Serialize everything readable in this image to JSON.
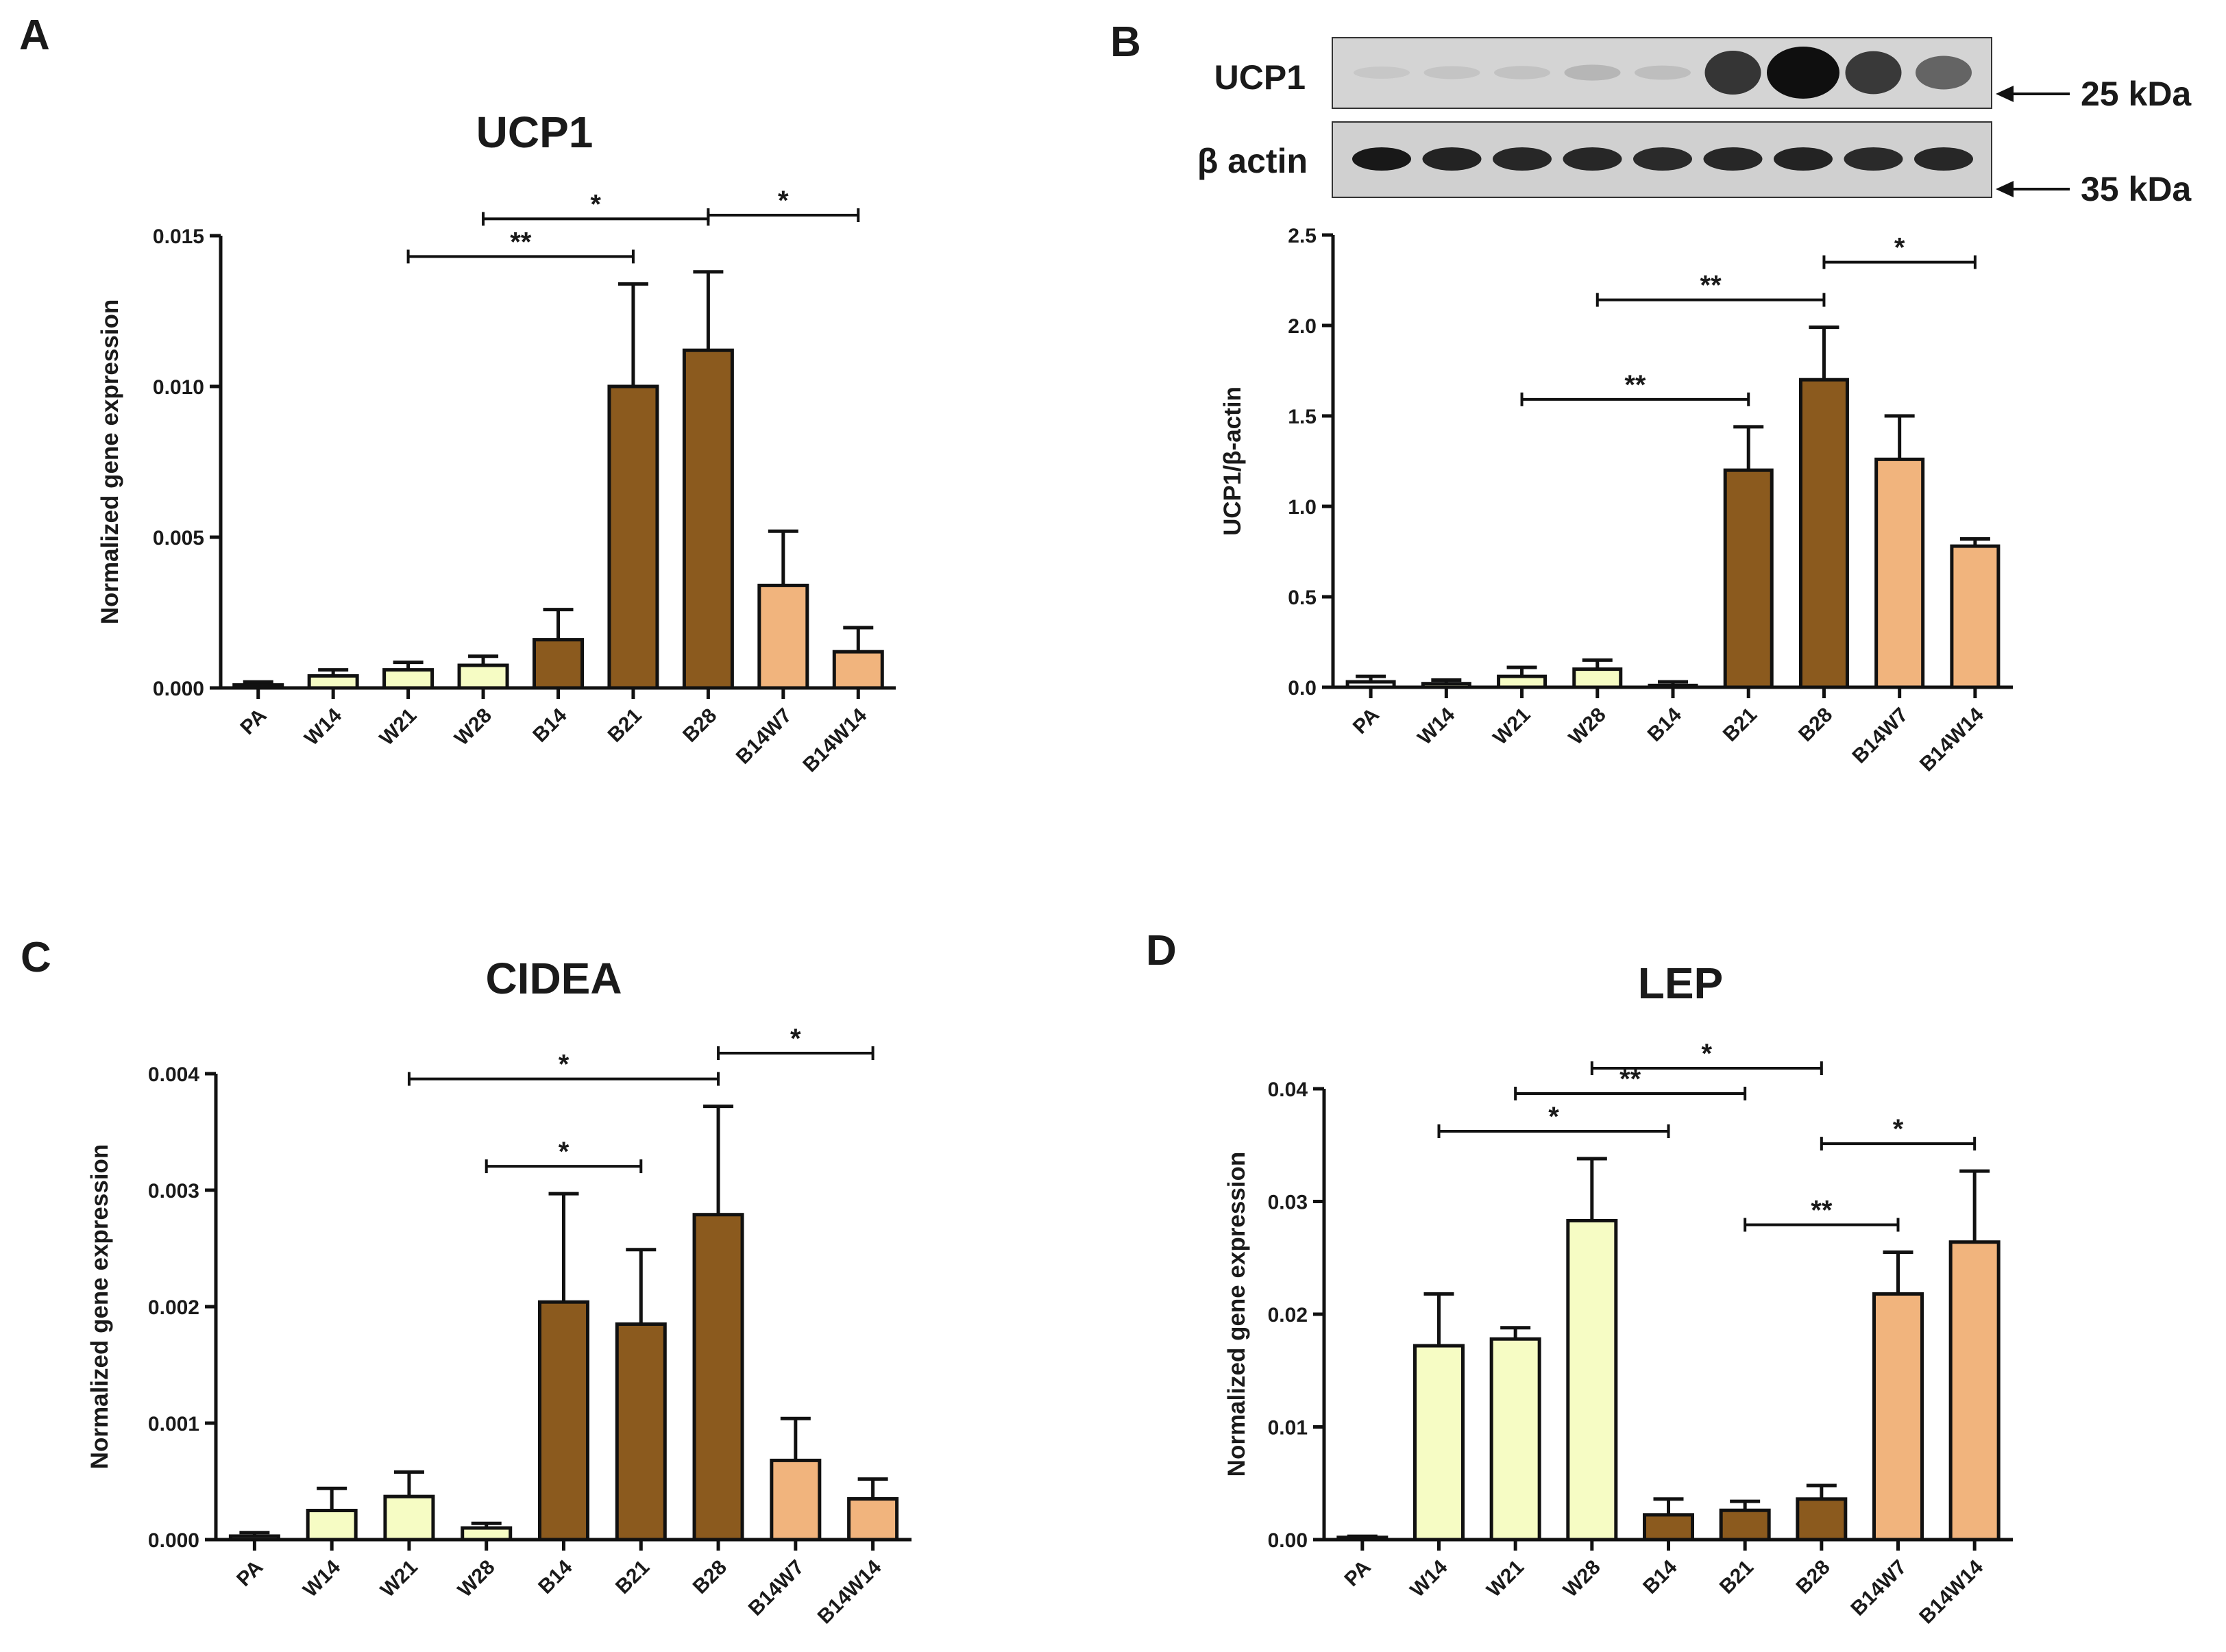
{
  "colors": {
    "PA": "#ffffff",
    "W": "#f6fcc4",
    "B": "#8b5a1e",
    "BW": "#f1b47d"
  },
  "blot": {
    "band_label_top": "UCP1",
    "band_label_bottom": "β actin",
    "marker_top": "25 kDa",
    "marker_bottom": "35 kDa",
    "ucp1_relative_intensity": [
      0.03,
      0.05,
      0.06,
      0.12,
      0.08,
      0.8,
      1.0,
      0.78,
      0.55
    ],
    "actin_relative_intensity": [
      0.98,
      0.92,
      0.9,
      0.9,
      0.88,
      0.9,
      0.92,
      0.88,
      0.9
    ]
  },
  "chart_data": [
    {
      "panel": "A",
      "type": "bar",
      "title": "UCP1",
      "ylabel": "Normalized gene expression",
      "xlabel": "",
      "categories": [
        "PA",
        "W14",
        "W21",
        "W28",
        "B14",
        "B21",
        "B28",
        "B14W7",
        "B14W14"
      ],
      "groups": [
        "PA",
        "W",
        "W",
        "W",
        "B",
        "B",
        "B",
        "BW",
        "BW"
      ],
      "values": [
        0.0001,
        0.0004,
        0.0006,
        0.00075,
        0.0016,
        0.01,
        0.0112,
        0.0034,
        0.0012
      ],
      "errors": [
        0.0001,
        0.0002,
        0.00025,
        0.0003,
        0.001,
        0.0034,
        0.0026,
        0.0018,
        0.0008
      ],
      "ylim": [
        0,
        0.015
      ],
      "yticks": [
        "0.000",
        "0.005",
        "0.010",
        "0.015"
      ],
      "significance": [
        {
          "from": "W21",
          "to": "B21",
          "label": "**"
        },
        {
          "from": "W28",
          "to": "B28",
          "label": "*"
        },
        {
          "from": "B28",
          "to": "B14W14",
          "label": "*"
        }
      ]
    },
    {
      "panel": "B",
      "type": "bar",
      "title": "",
      "ylabel": "UCP1/β-actin",
      "xlabel": "",
      "categories": [
        "PA",
        "W14",
        "W21",
        "W28",
        "B14",
        "B21",
        "B28",
        "B14W7",
        "B14W14"
      ],
      "groups": [
        "PA",
        "W",
        "W",
        "W",
        "B",
        "B",
        "B",
        "BW",
        "BW"
      ],
      "values": [
        0.03,
        0.02,
        0.06,
        0.1,
        0.01,
        1.2,
        1.7,
        1.26,
        0.78
      ],
      "errors": [
        0.03,
        0.02,
        0.05,
        0.05,
        0.02,
        0.24,
        0.29,
        0.24,
        0.04
      ],
      "ylim": [
        0,
        2.5
      ],
      "yticks": [
        "0.0",
        "0.5",
        "1.0",
        "1.5",
        "2.0",
        "2.5"
      ],
      "significance": [
        {
          "from": "W21",
          "to": "B21",
          "label": "**"
        },
        {
          "from": "W28",
          "to": "B28",
          "label": "**"
        },
        {
          "from": "B28",
          "to": "B14W14",
          "label": "*"
        }
      ]
    },
    {
      "panel": "C",
      "type": "bar",
      "title": "CIDEA",
      "ylabel": "Normalized gene expression",
      "xlabel": "",
      "categories": [
        "PA",
        "W14",
        "W21",
        "W28",
        "B14",
        "B21",
        "B28",
        "B14W7",
        "B14W14"
      ],
      "groups": [
        "PA",
        "W",
        "W",
        "W",
        "B",
        "B",
        "B",
        "BW",
        "BW"
      ],
      "values": [
        3e-05,
        0.00025,
        0.00037,
        0.0001,
        0.00204,
        0.00185,
        0.00279,
        0.00068,
        0.00035
      ],
      "errors": [
        3e-05,
        0.00019,
        0.00021,
        4e-05,
        0.00093,
        0.00064,
        0.00093,
        0.00036,
        0.00017
      ],
      "ylim": [
        0,
        0.004
      ],
      "yticks": [
        "0.000",
        "0.001",
        "0.002",
        "0.003",
        "0.004"
      ],
      "significance": [
        {
          "from": "W28",
          "to": "B21",
          "label": "*"
        },
        {
          "from": "W21",
          "to": "B28",
          "label": "*"
        },
        {
          "from": "B28",
          "to": "B14W14",
          "label": "*"
        }
      ]
    },
    {
      "panel": "D",
      "type": "bar",
      "title": "LEP",
      "ylabel": "Normalized gene expression",
      "xlabel": "",
      "categories": [
        "PA",
        "W14",
        "W21",
        "W28",
        "B14",
        "B21",
        "B28",
        "B14W7",
        "B14W14"
      ],
      "groups": [
        "PA",
        "W",
        "W",
        "W",
        "B",
        "B",
        "B",
        "BW",
        "BW"
      ],
      "values": [
        0.0002,
        0.0172,
        0.0178,
        0.0283,
        0.0022,
        0.0026,
        0.0036,
        0.0218,
        0.0264
      ],
      "errors": [
        0.0001,
        0.0046,
        0.001,
        0.0055,
        0.0014,
        0.0008,
        0.0012,
        0.0037,
        0.0063
      ],
      "ylim": [
        0,
        0.04
      ],
      "yticks": [
        "0.00",
        "0.01",
        "0.02",
        "0.03",
        "0.04"
      ],
      "significance": [
        {
          "from": "W14",
          "to": "B14",
          "label": "*"
        },
        {
          "from": "W21",
          "to": "B21",
          "label": "**"
        },
        {
          "from": "W28",
          "to": "B28",
          "label": "*"
        },
        {
          "from": "B21",
          "to": "B14W7",
          "label": "**"
        },
        {
          "from": "B28",
          "to": "B14W14",
          "label": "*"
        }
      ]
    }
  ]
}
